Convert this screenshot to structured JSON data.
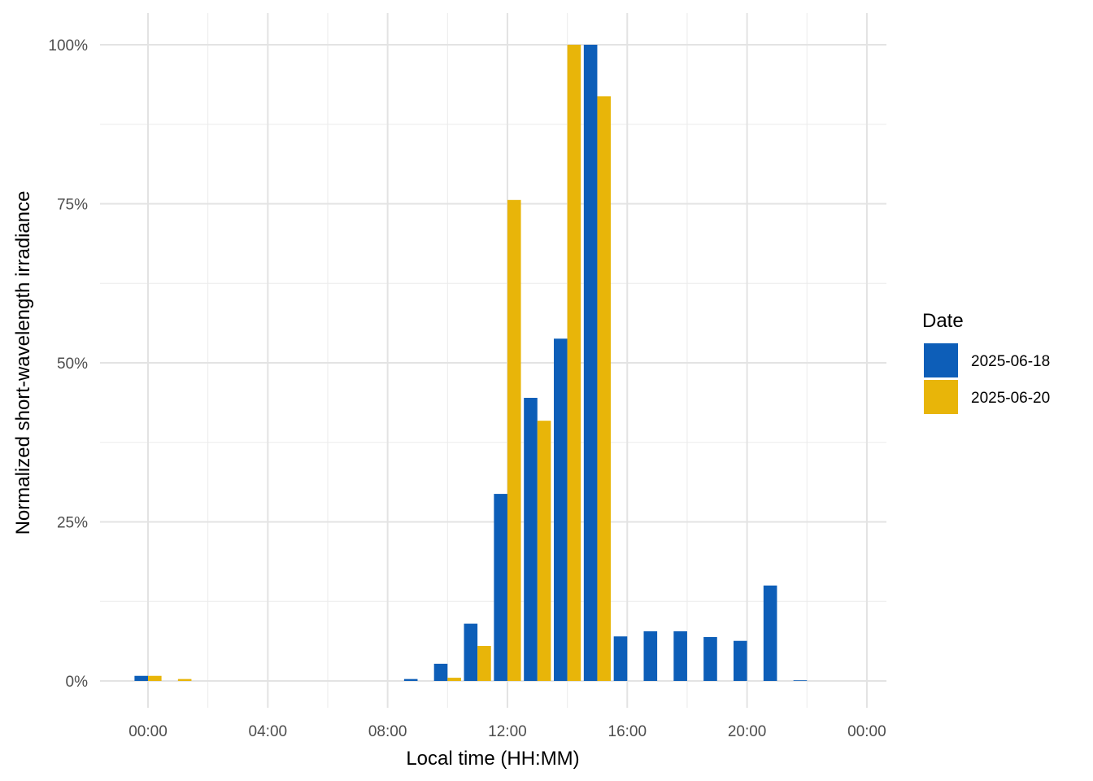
{
  "chart_data": {
    "type": "bar",
    "title": "",
    "xlabel": "Local time (HH:MM)",
    "ylabel": "Normalized short-wavelength irradiance",
    "x_unit": "hour of day",
    "xlim": [
      -1.5,
      24.7
    ],
    "ylim": [
      -4.5,
      105
    ],
    "x_ticks": [
      0,
      4,
      8,
      12,
      16,
      20,
      24
    ],
    "x_tick_labels": [
      "00:00",
      "04:00",
      "08:00",
      "12:00",
      "16:00",
      "20:00",
      "00:00"
    ],
    "y_ticks": [
      0,
      25,
      50,
      75,
      100
    ],
    "y_tick_labels": [
      "0%",
      "25%",
      "50%",
      "75%",
      "100%"
    ],
    "grid": true,
    "legend": {
      "title": "Date",
      "placement": "right"
    },
    "hours": [
      0,
      1,
      2,
      3,
      4,
      5,
      6,
      7,
      8,
      9,
      10,
      11,
      12,
      13,
      14,
      15,
      16,
      17,
      18,
      19,
      20,
      21,
      22,
      23
    ],
    "series": [
      {
        "name": "2025-06-18",
        "color": "#0D5EB8",
        "values": [
          0.8,
          0,
          0,
          0,
          0,
          0,
          0,
          0,
          0,
          0.3,
          2.7,
          9.0,
          29.4,
          44.5,
          53.8,
          100,
          7.0,
          7.8,
          7.8,
          6.9,
          6.3,
          15.0,
          0.1,
          0
        ]
      },
      {
        "name": "2025-06-20",
        "color": "#E8B509",
        "values": [
          0.8,
          0.3,
          0,
          0,
          0,
          0,
          0,
          0,
          0,
          0,
          0.5,
          5.5,
          75.6,
          40.9,
          100,
          91.9,
          0,
          0,
          0,
          0,
          0,
          0,
          0,
          0
        ]
      }
    ]
  }
}
